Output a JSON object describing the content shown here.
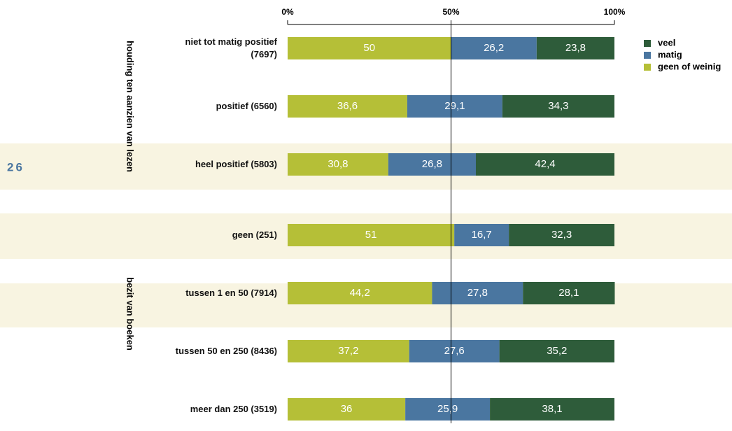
{
  "page_number": "26",
  "chart_data": {
    "type": "stacked_barh",
    "groups": [
      {
        "name": "houding ten aanzien van lezen",
        "categories": [
          "niet tot matig positief\n(7697)",
          "positief (6560)",
          "heel positief (5803)"
        ]
      },
      {
        "name": "bezit van boeken",
        "categories": [
          "geen (251)",
          "tussen 1 en 50 (7914)",
          "tussen 50 en 250 (8436)",
          "meer dan 250 (3519)"
        ]
      }
    ],
    "series": [
      {
        "name": "geen of weinig",
        "color": "#b5bf37",
        "values": [
          50,
          36.6,
          30.8,
          51,
          44.2,
          37.2,
          36
        ],
        "value_labels": [
          "50",
          "36,6",
          "30,8",
          "51",
          "44,2",
          "37,2",
          "36"
        ]
      },
      {
        "name": "matig",
        "color": "#4a76a0",
        "values": [
          26.2,
          29.1,
          26.8,
          16.7,
          27.8,
          27.6,
          25.9
        ],
        "value_labels": [
          "26,2",
          "29,1",
          "26,8",
          "16,7",
          "27,8",
          "27,6",
          "25,9"
        ]
      },
      {
        "name": "veel",
        "color": "#2e5c3a",
        "values": [
          23.8,
          34.3,
          42.4,
          32.3,
          28.1,
          35.2,
          38.1
        ],
        "value_labels": [
          "23,8",
          "34,3",
          "42,4",
          "32,3",
          "28,1",
          "35,2",
          "38,1"
        ]
      }
    ],
    "xlim": [
      0,
      100
    ],
    "xticks": [
      {
        "value": 0,
        "label": "0%"
      },
      {
        "value": 50,
        "label": "50%"
      },
      {
        "value": 100,
        "label": "100%"
      }
    ],
    "legend": "top-right"
  }
}
